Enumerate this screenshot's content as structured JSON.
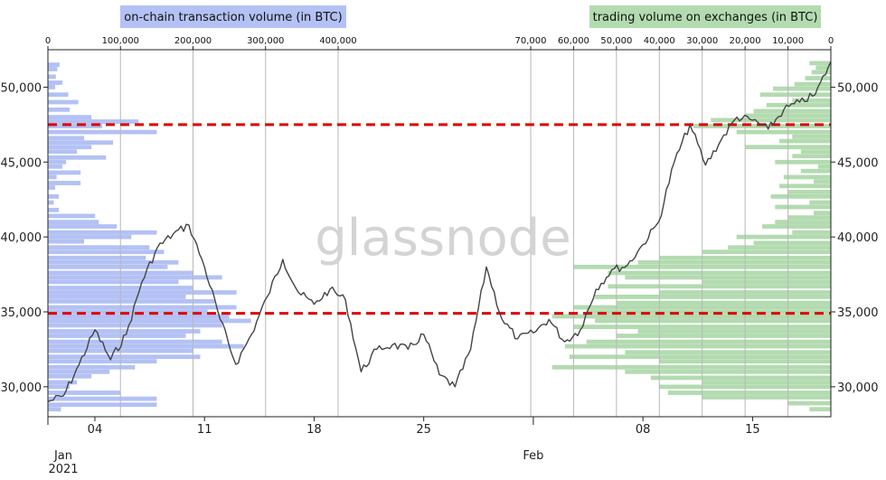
{
  "chart_data": {
    "type": "line",
    "watermark": "glassnode",
    "legend": {
      "left": "on-chain transaction volume (in BTC)",
      "right": "trading volume on exchanges (in BTC)",
      "left_color": "#b3c1f4",
      "right_color": "#b3dbb0"
    },
    "top_axis_left": {
      "ticks": [
        0,
        100000,
        200000,
        300000,
        400000
      ],
      "tick_labels": [
        "0",
        "100,000",
        "200,000",
        "300,000",
        "400,000"
      ]
    },
    "top_axis_right": {
      "ticks": [
        70000,
        60000,
        50000,
        40000,
        30000,
        20000,
        10000,
        0
      ],
      "tick_labels": [
        "70,000",
        "60,000",
        "50,000",
        "40,000",
        "30,000",
        "20,000",
        "10,000",
        "0"
      ]
    },
    "y": {
      "ylim": [
        28000,
        52500
      ],
      "ticks": [
        30000,
        35000,
        40000,
        45000,
        50000
      ],
      "tick_labels": [
        "30,000",
        "35,000",
        "40,000",
        "45,000",
        "50,000"
      ]
    },
    "x": {
      "tick_labels": [
        "04",
        "11",
        "18",
        "25",
        "08",
        "15"
      ],
      "month_labels": [
        "Jan\n2021",
        "Feb"
      ]
    },
    "reference_lines": [
      {
        "value": 47500,
        "color": "#dd0000",
        "style": "dashed"
      },
      {
        "value": 34900,
        "color": "#dd0000",
        "style": "dashed"
      }
    ],
    "series": [
      {
        "color": "#444444",
        "values": [
          [
            "2021-01-01",
            29000
          ],
          [
            "2021-01-02",
            29400
          ],
          [
            "2021-01-03",
            31500
          ],
          [
            "2021-01-04",
            33800
          ],
          [
            "2021-01-05",
            31800
          ],
          [
            "2021-01-06",
            33500
          ],
          [
            "2021-01-07",
            37000
          ],
          [
            "2021-01-08",
            39300
          ],
          [
            "2021-01-09",
            40200
          ],
          [
            "2021-01-10",
            40800
          ],
          [
            "2021-01-11",
            38000
          ],
          [
            "2021-01-12",
            34500
          ],
          [
            "2021-01-13",
            31500
          ],
          [
            "2021-01-14",
            33500
          ],
          [
            "2021-01-15",
            36000
          ],
          [
            "2021-01-16",
            38500
          ],
          [
            "2021-01-17",
            36300
          ],
          [
            "2021-01-18",
            35500
          ],
          [
            "2021-01-19",
            36500
          ],
          [
            "2021-01-20",
            35800
          ],
          [
            "2021-01-21",
            31000
          ],
          [
            "2021-01-22",
            32500
          ],
          [
            "2021-01-23",
            32800
          ],
          [
            "2021-01-24",
            32500
          ],
          [
            "2021-01-25",
            33500
          ],
          [
            "2021-01-26",
            30800
          ],
          [
            "2021-01-27",
            30000
          ],
          [
            "2021-01-28",
            32500
          ],
          [
            "2021-01-29",
            38000
          ],
          [
            "2021-01-30",
            34500
          ],
          [
            "2021-01-31",
            33200
          ],
          [
            "2021-02-01",
            33600
          ],
          [
            "2021-02-02",
            34500
          ],
          [
            "2021-02-03",
            33000
          ],
          [
            "2021-02-04",
            33800
          ],
          [
            "2021-02-05",
            36500
          ],
          [
            "2021-02-06",
            37800
          ],
          [
            "2021-02-07",
            38100
          ],
          [
            "2021-02-08",
            39500
          ],
          [
            "2021-02-09",
            41000
          ],
          [
            "2021-02-10",
            45000
          ],
          [
            "2021-02-11",
            47500
          ],
          [
            "2021-02-12",
            44800
          ],
          [
            "2021-02-13",
            46500
          ],
          [
            "2021-02-14",
            48000
          ],
          [
            "2021-02-15",
            47800
          ],
          [
            "2021-02-16",
            47200
          ],
          [
            "2021-02-17",
            48500
          ],
          [
            "2021-02-18",
            49000
          ],
          [
            "2021-02-19",
            49500
          ],
          [
            "2021-02-20",
            51700
          ]
        ]
      }
    ],
    "volume_profile_left": [
      [
        51500,
        16000
      ],
      [
        51200,
        13000
      ],
      [
        50700,
        11000
      ],
      [
        50300,
        20000
      ],
      [
        50000,
        10000
      ],
      [
        49500,
        28000
      ],
      [
        49000,
        42000
      ],
      [
        48500,
        30000
      ],
      [
        48000,
        60000
      ],
      [
        47700,
        125000
      ],
      [
        47400,
        75000
      ],
      [
        47000,
        150000
      ],
      [
        46600,
        50000
      ],
      [
        46300,
        90000
      ],
      [
        46000,
        60000
      ],
      [
        45700,
        40000
      ],
      [
        45300,
        80000
      ],
      [
        45000,
        25000
      ],
      [
        44700,
        20000
      ],
      [
        44300,
        45000
      ],
      [
        44000,
        12000
      ],
      [
        43600,
        45000
      ],
      [
        43300,
        10000
      ],
      [
        42700,
        15000
      ],
      [
        42300,
        8000
      ],
      [
        41800,
        15000
      ],
      [
        41400,
        65000
      ],
      [
        41000,
        70000
      ],
      [
        40700,
        95000
      ],
      [
        40300,
        150000
      ],
      [
        40000,
        115000
      ],
      [
        39700,
        50000
      ],
      [
        39300,
        140000
      ],
      [
        39000,
        160000
      ],
      [
        38600,
        135000
      ],
      [
        38300,
        180000
      ],
      [
        38000,
        165000
      ],
      [
        37600,
        200000
      ],
      [
        37300,
        240000
      ],
      [
        37000,
        180000
      ],
      [
        36600,
        200000
      ],
      [
        36300,
        260000
      ],
      [
        36000,
        190000
      ],
      [
        35700,
        230000
      ],
      [
        35300,
        260000
      ],
      [
        35000,
        220000
      ],
      [
        34700,
        250000
      ],
      [
        34400,
        280000
      ],
      [
        34100,
        240000
      ],
      [
        33700,
        210000
      ],
      [
        33400,
        190000
      ],
      [
        33000,
        240000
      ],
      [
        32700,
        270000
      ],
      [
        32400,
        200000
      ],
      [
        32000,
        210000
      ],
      [
        31700,
        150000
      ],
      [
        31300,
        120000
      ],
      [
        31000,
        85000
      ],
      [
        30700,
        60000
      ],
      [
        30300,
        40000
      ],
      [
        30000,
        30000
      ],
      [
        29600,
        100000
      ],
      [
        29200,
        150000
      ],
      [
        28800,
        150000
      ],
      [
        28500,
        18000
      ]
    ],
    "volume_profile_right": [
      [
        51600,
        5000
      ],
      [
        51300,
        3500
      ],
      [
        51000,
        4500
      ],
      [
        50600,
        6000
      ],
      [
        50200,
        8500
      ],
      [
        49900,
        13500
      ],
      [
        49500,
        16500
      ],
      [
        49100,
        9000
      ],
      [
        48800,
        15000
      ],
      [
        48400,
        18000
      ],
      [
        48100,
        20000
      ],
      [
        47800,
        28000
      ],
      [
        47400,
        32000
      ],
      [
        47000,
        22000
      ],
      [
        46700,
        9000
      ],
      [
        46400,
        12000
      ],
      [
        46000,
        20000
      ],
      [
        45700,
        7000
      ],
      [
        45400,
        9000
      ],
      [
        45000,
        13000
      ],
      [
        44700,
        3000
      ],
      [
        44400,
        7000
      ],
      [
        44000,
        11000
      ],
      [
        43700,
        4000
      ],
      [
        43400,
        12000
      ],
      [
        43000,
        10000
      ],
      [
        42700,
        14000
      ],
      [
        42300,
        5000
      ],
      [
        42000,
        13000
      ],
      [
        41600,
        4000
      ],
      [
        41300,
        10000
      ],
      [
        41000,
        13000
      ],
      [
        40700,
        16000
      ],
      [
        40300,
        9000
      ],
      [
        40000,
        22000
      ],
      [
        39600,
        18000
      ],
      [
        39300,
        24000
      ],
      [
        39000,
        30000
      ],
      [
        38600,
        40000
      ],
      [
        38300,
        45000
      ],
      [
        38000,
        60000
      ],
      [
        37600,
        52000
      ],
      [
        37300,
        48000
      ],
      [
        37000,
        30000
      ],
      [
        36700,
        52000
      ],
      [
        36300,
        40000
      ],
      [
        36000,
        55000
      ],
      [
        35600,
        50000
      ],
      [
        35300,
        60000
      ],
      [
        35000,
        57000
      ],
      [
        34700,
        65000
      ],
      [
        34400,
        55000
      ],
      [
        34000,
        60000
      ],
      [
        33700,
        45000
      ],
      [
        33400,
        50000
      ],
      [
        33000,
        57000
      ],
      [
        32700,
        62000
      ],
      [
        32300,
        48000
      ],
      [
        32000,
        61000
      ],
      [
        31700,
        40000
      ],
      [
        31300,
        65000
      ],
      [
        31000,
        48000
      ],
      [
        30600,
        42000
      ],
      [
        30300,
        30000
      ],
      [
        30000,
        40000
      ],
      [
        29600,
        38000
      ],
      [
        29300,
        30000
      ],
      [
        28900,
        10000
      ],
      [
        28500,
        5000
      ]
    ]
  }
}
